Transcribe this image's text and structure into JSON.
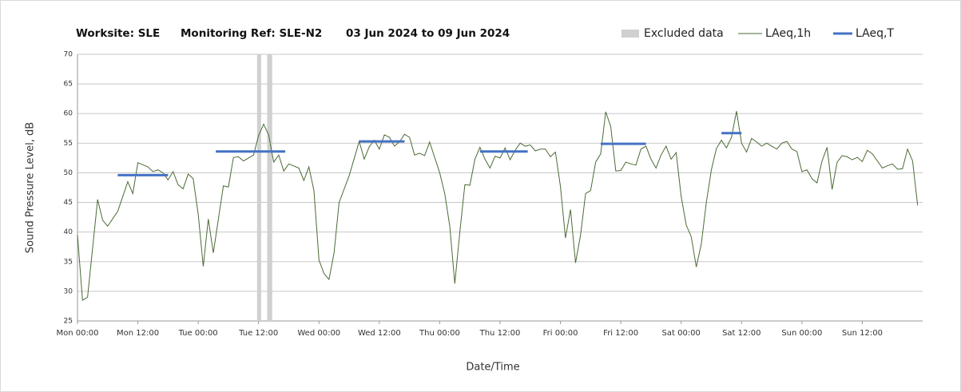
{
  "chart_data": {
    "type": "line",
    "title_parts": [
      "Worksite: SLE",
      "Monitoring Ref: SLE-N2",
      "03 Jun 2024 to 09 Jun 2024"
    ],
    "x_label": "Date/Time",
    "y_label": "Sound Pressure Level, dB",
    "xlim": [
      0,
      168
    ],
    "ylim": [
      25,
      70
    ],
    "yticks": [
      25,
      30,
      35,
      40,
      45,
      50,
      55,
      60,
      65,
      70
    ],
    "xticks": [
      {
        "value": 0,
        "label": "Mon 00:00"
      },
      {
        "value": 12,
        "label": "Mon 12:00"
      },
      {
        "value": 24,
        "label": "Tue 00:00"
      },
      {
        "value": 36,
        "label": "Tue 12:00"
      },
      {
        "value": 48,
        "label": "Wed 00:00"
      },
      {
        "value": 60,
        "label": "Wed 12:00"
      },
      {
        "value": 72,
        "label": "Thu 00:00"
      },
      {
        "value": 84,
        "label": "Thu 12:00"
      },
      {
        "value": 96,
        "label": "Fri 00:00"
      },
      {
        "value": 108,
        "label": "Fri 12:00"
      },
      {
        "value": 120,
        "label": "Sat 00:00"
      },
      {
        "value": 132,
        "label": "Sat 12:00"
      },
      {
        "value": 144,
        "label": "Sun 00:00"
      },
      {
        "value": 156,
        "label": "Sun 12:00"
      }
    ],
    "grid": true,
    "excluded": {
      "name": "Excluded data",
      "color": "#d0d0d0",
      "ranges": [
        [
          35.7,
          36.5
        ],
        [
          37.7,
          38.7
        ]
      ]
    },
    "series": [
      {
        "name": "LAeq,1h",
        "color": "#4a6b35",
        "x": [
          0,
          1,
          2,
          4,
          5,
          6,
          8,
          10,
          11,
          12,
          14,
          15,
          16,
          17,
          18,
          19,
          20,
          21,
          22,
          23,
          24,
          25,
          26,
          27,
          29,
          30,
          31,
          32,
          33,
          35,
          36,
          37,
          38,
          39,
          40,
          41,
          42,
          44,
          45,
          46,
          47,
          48,
          49,
          50,
          51,
          52,
          54,
          56,
          57,
          58,
          59,
          60,
          61,
          62,
          63,
          64,
          65,
          66,
          67,
          68,
          69,
          70,
          72,
          73,
          74,
          75,
          76,
          77,
          78,
          79,
          80,
          81,
          82,
          83,
          84,
          85,
          86,
          87,
          88,
          89,
          90,
          91,
          92,
          93,
          94,
          95,
          96,
          97,
          98,
          99,
          100,
          101,
          102,
          103,
          104,
          105,
          106,
          107,
          108,
          109,
          110,
          111,
          112,
          113,
          114,
          115,
          116,
          117,
          118,
          119,
          120,
          121,
          122,
          123,
          124,
          125,
          126,
          127,
          128,
          129,
          130,
          131,
          132,
          133,
          134,
          135,
          136,
          137,
          138,
          139,
          140,
          141,
          142,
          143,
          144,
          145,
          146,
          147,
          148,
          149,
          150,
          151,
          152,
          153,
          154,
          155,
          156,
          157,
          158,
          159,
          160,
          161,
          162,
          163,
          164,
          165,
          166,
          167
        ],
        "values": [
          39.5,
          28.5,
          29,
          45.5,
          42,
          41,
          43.5,
          48.5,
          46.5,
          51.7,
          51,
          50.2,
          50.5,
          50,
          48.8,
          50.2,
          48,
          47.3,
          49.8,
          49,
          43,
          34.2,
          42.2,
          36.5,
          47.8,
          47.6,
          52.6,
          52.7,
          52,
          53,
          56.3,
          58.2,
          56.4,
          51.8,
          53,
          50.3,
          51.5,
          50.8,
          48.7,
          51,
          47,
          35.3,
          33,
          32,
          36.5,
          45,
          49.5,
          55.3,
          52.3,
          54.4,
          55.5,
          54,
          56.4,
          56,
          54.5,
          55.2,
          56.5,
          56,
          53,
          53.3,
          52.9,
          55.2,
          50,
          46.5,
          41,
          31.3,
          40,
          48,
          47.9,
          52.3,
          54.3,
          52.3,
          50.8,
          52.8,
          52.5,
          54.2,
          52.2,
          53.8,
          55,
          54.5,
          54.7,
          53.7,
          54,
          54,
          52.7,
          53.5,
          47.7,
          39,
          43.8,
          34.8,
          39.5,
          46.5,
          47,
          51.8,
          53.2,
          60.3,
          57.8,
          50.3,
          50.4,
          51.8,
          51.5,
          51.3,
          54,
          54.5,
          52.3,
          50.8,
          53,
          54.5,
          52.3,
          53.4,
          46,
          41.2,
          39.2,
          34.1,
          38,
          45,
          50.5,
          54.1,
          55.5,
          54.2,
          56,
          60.4,
          55,
          53.5,
          55.8,
          55.2,
          54.5,
          55,
          54.5,
          54,
          55,
          55.3,
          54,
          53.6,
          50.2,
          50.5,
          49,
          48.3,
          52,
          54.3,
          47.2,
          51.8,
          52.9,
          52.7,
          52.2,
          52.6,
          51.9,
          53.8,
          53.2,
          52,
          50.8,
          51.2,
          51.5,
          50.6,
          50.7,
          54,
          52,
          44.5
        ]
      },
      {
        "name": "LAeq,T",
        "color": "#4472c4",
        "x_start": [
          8,
          27.5,
          56,
          80,
          104,
          128
        ],
        "x_end": [
          18,
          41.3,
          65,
          89.5,
          113,
          132
        ],
        "values": [
          49.6,
          53.6,
          55.3,
          53.6,
          54.9,
          56.7
        ]
      }
    ]
  }
}
